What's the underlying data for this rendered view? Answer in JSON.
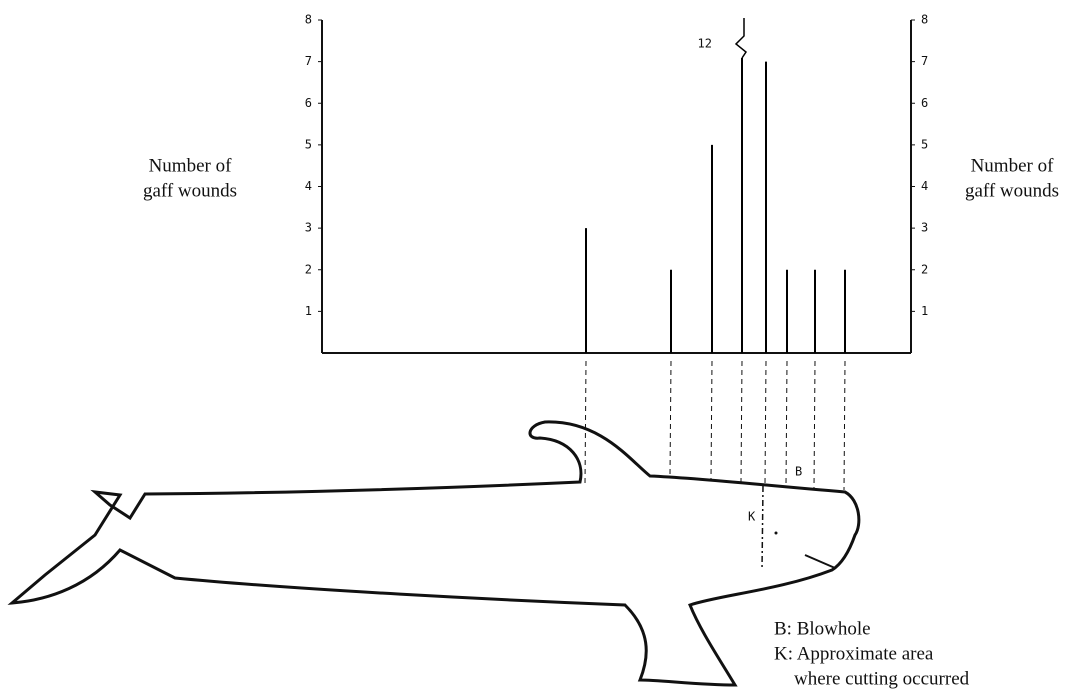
{
  "chart_data": {
    "type": "stem",
    "ylabel": [
      "Number of",
      "gaff wounds"
    ],
    "y2label": [
      "Number of",
      "gaff wounds"
    ],
    "categories": [
      null,
      null,
      null,
      null,
      null,
      null,
      null,
      null
    ],
    "values": [
      3,
      2,
      5,
      12,
      7,
      2,
      2,
      2
    ],
    "color": "#000000",
    "ylim": [
      0,
      8
    ],
    "yticks": [
      1,
      2,
      3,
      4,
      5,
      6,
      7,
      8
    ],
    "y2lim": [
      0,
      8
    ],
    "y2ticks": [
      1,
      2,
      3,
      4,
      5,
      6,
      7,
      8
    ],
    "grid": false,
    "annotations": {
      "blowhole_marker": "B",
      "cut_marker": "K",
      "legend": [
        "B: Blowhole",
        "K: Approximate area",
        "where cutting occurred"
      ]
    }
  }
}
